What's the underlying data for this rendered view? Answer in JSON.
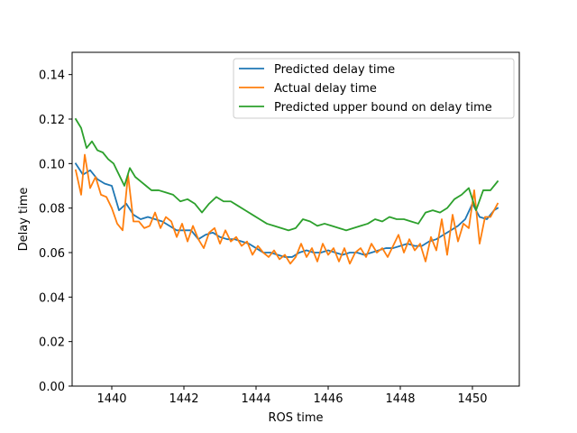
{
  "chart_data": {
    "type": "line",
    "title": "",
    "xlabel": "ROS time",
    "ylabel": "Delay time",
    "xlim": [
      1438.9,
      1451.3
    ],
    "ylim": [
      0.0,
      0.15
    ],
    "xticks": [
      1440,
      1442,
      1444,
      1446,
      1448,
      1450
    ],
    "xtick_labels": [
      "1440",
      "1442",
      "1444",
      "1446",
      "1448",
      "1450"
    ],
    "yticks": [
      0.0,
      0.02,
      0.04,
      0.06,
      0.08,
      0.1,
      0.12,
      0.14
    ],
    "ytick_labels": [
      "0.00",
      "0.02",
      "0.04",
      "0.06",
      "0.08",
      "0.10",
      "0.12",
      "0.14"
    ],
    "grid": false,
    "legend_position": "top-right",
    "series": [
      {
        "name": "Predicted delay time",
        "color": "#1f77b4",
        "x": [
          1439.0,
          1439.2,
          1439.4,
          1439.6,
          1439.8,
          1440.0,
          1440.2,
          1440.4,
          1440.6,
          1440.8,
          1441.0,
          1441.2,
          1441.4,
          1441.6,
          1441.8,
          1442.0,
          1442.2,
          1442.4,
          1442.6,
          1442.8,
          1443.0,
          1443.2,
          1443.4,
          1443.6,
          1443.8,
          1444.0,
          1444.2,
          1444.4,
          1444.6,
          1444.8,
          1445.0,
          1445.2,
          1445.4,
          1445.6,
          1445.8,
          1446.0,
          1446.2,
          1446.4,
          1446.6,
          1446.8,
          1447.0,
          1447.2,
          1447.4,
          1447.6,
          1447.8,
          1448.0,
          1448.2,
          1448.4,
          1448.6,
          1448.8,
          1449.0,
          1449.2,
          1449.4,
          1449.6,
          1449.8,
          1450.0,
          1450.2,
          1450.4,
          1450.6,
          1450.7
        ],
        "values": [
          0.1,
          0.095,
          0.097,
          0.093,
          0.091,
          0.09,
          0.079,
          0.082,
          0.077,
          0.075,
          0.076,
          0.075,
          0.074,
          0.072,
          0.07,
          0.07,
          0.07,
          0.066,
          0.068,
          0.069,
          0.067,
          0.066,
          0.066,
          0.065,
          0.064,
          0.062,
          0.06,
          0.06,
          0.059,
          0.058,
          0.058,
          0.06,
          0.061,
          0.06,
          0.06,
          0.061,
          0.06,
          0.059,
          0.06,
          0.06,
          0.059,
          0.06,
          0.061,
          0.062,
          0.062,
          0.063,
          0.064,
          0.063,
          0.063,
          0.065,
          0.066,
          0.068,
          0.07,
          0.072,
          0.075,
          0.082,
          0.076,
          0.075,
          0.079,
          0.08
        ]
      },
      {
        "name": "Actual delay time",
        "color": "#ff7f0e",
        "x": [
          1439.0,
          1439.15,
          1439.25,
          1439.4,
          1439.55,
          1439.7,
          1439.85,
          1440.0,
          1440.15,
          1440.3,
          1440.45,
          1440.6,
          1440.75,
          1440.9,
          1441.05,
          1441.2,
          1441.35,
          1441.5,
          1441.65,
          1441.8,
          1441.95,
          1442.1,
          1442.25,
          1442.4,
          1442.55,
          1442.7,
          1442.85,
          1443.0,
          1443.15,
          1443.3,
          1443.45,
          1443.6,
          1443.75,
          1443.9,
          1444.05,
          1444.2,
          1444.35,
          1444.5,
          1444.65,
          1444.8,
          1444.95,
          1445.1,
          1445.25,
          1445.4,
          1445.55,
          1445.7,
          1445.85,
          1446.0,
          1446.15,
          1446.3,
          1446.45,
          1446.6,
          1446.75,
          1446.9,
          1447.05,
          1447.2,
          1447.35,
          1447.5,
          1447.65,
          1447.8,
          1447.95,
          1448.1,
          1448.25,
          1448.4,
          1448.55,
          1448.7,
          1448.85,
          1449.0,
          1449.15,
          1449.3,
          1449.45,
          1449.6,
          1449.75,
          1449.9,
          1450.05,
          1450.2,
          1450.35,
          1450.5,
          1450.7
        ],
        "values": [
          0.097,
          0.086,
          0.104,
          0.089,
          0.094,
          0.086,
          0.085,
          0.08,
          0.073,
          0.07,
          0.095,
          0.074,
          0.074,
          0.071,
          0.072,
          0.078,
          0.071,
          0.076,
          0.074,
          0.067,
          0.073,
          0.065,
          0.072,
          0.066,
          0.062,
          0.069,
          0.071,
          0.064,
          0.07,
          0.065,
          0.067,
          0.063,
          0.065,
          0.059,
          0.063,
          0.06,
          0.058,
          0.061,
          0.057,
          0.059,
          0.055,
          0.058,
          0.064,
          0.058,
          0.062,
          0.056,
          0.064,
          0.059,
          0.062,
          0.056,
          0.062,
          0.055,
          0.06,
          0.062,
          0.058,
          0.064,
          0.06,
          0.062,
          0.058,
          0.063,
          0.068,
          0.06,
          0.066,
          0.061,
          0.064,
          0.056,
          0.067,
          0.061,
          0.075,
          0.059,
          0.077,
          0.065,
          0.073,
          0.071,
          0.088,
          0.064,
          0.076,
          0.076,
          0.082
        ]
      },
      {
        "name": "Predicted upper bound on delay time",
        "color": "#2ca02c",
        "x": [
          1439.0,
          1439.15,
          1439.3,
          1439.45,
          1439.6,
          1439.75,
          1439.9,
          1440.05,
          1440.2,
          1440.35,
          1440.5,
          1440.65,
          1440.8,
          1440.95,
          1441.1,
          1441.3,
          1441.5,
          1441.7,
          1441.9,
          1442.1,
          1442.3,
          1442.5,
          1442.7,
          1442.9,
          1443.1,
          1443.3,
          1443.5,
          1443.7,
          1443.9,
          1444.1,
          1444.3,
          1444.5,
          1444.7,
          1444.9,
          1445.1,
          1445.3,
          1445.5,
          1445.7,
          1445.9,
          1446.1,
          1446.3,
          1446.5,
          1446.7,
          1446.9,
          1447.1,
          1447.3,
          1447.5,
          1447.7,
          1447.9,
          1448.1,
          1448.3,
          1448.5,
          1448.7,
          1448.9,
          1449.1,
          1449.3,
          1449.5,
          1449.7,
          1449.9,
          1450.1,
          1450.3,
          1450.5,
          1450.7
        ],
        "values": [
          0.12,
          0.116,
          0.107,
          0.11,
          0.106,
          0.105,
          0.102,
          0.1,
          0.095,
          0.09,
          0.098,
          0.094,
          0.092,
          0.09,
          0.088,
          0.088,
          0.087,
          0.086,
          0.083,
          0.084,
          0.082,
          0.078,
          0.082,
          0.085,
          0.083,
          0.083,
          0.081,
          0.079,
          0.077,
          0.075,
          0.073,
          0.072,
          0.071,
          0.07,
          0.071,
          0.075,
          0.074,
          0.072,
          0.073,
          0.072,
          0.071,
          0.07,
          0.071,
          0.072,
          0.073,
          0.075,
          0.074,
          0.076,
          0.075,
          0.075,
          0.074,
          0.073,
          0.078,
          0.079,
          0.078,
          0.08,
          0.084,
          0.086,
          0.089,
          0.079,
          0.088,
          0.088,
          0.092
        ]
      }
    ]
  }
}
